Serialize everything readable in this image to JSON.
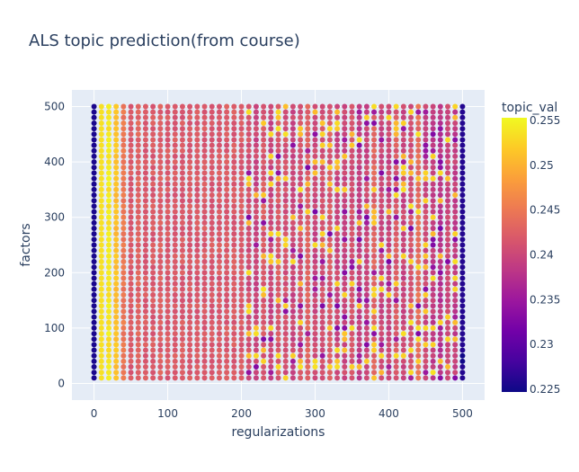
{
  "chart_data": {
    "type": "scatter",
    "title": "ALS topic prediction(from course)",
    "xlabel": "regularizations",
    "ylabel": "factors",
    "xlim": [
      -30,
      530
    ],
    "ylim": [
      -30,
      530
    ],
    "x_ticks": [
      0,
      100,
      200,
      300,
      400,
      500
    ],
    "y_ticks": [
      0,
      100,
      200,
      300,
      400,
      500
    ],
    "grid": true,
    "colorbar": {
      "title": "topic_val",
      "range": [
        0.2247,
        0.2553
      ],
      "ticks": [
        "0.225",
        "0.23",
        "0.235",
        "0.24",
        "0.245",
        "0.25",
        "0.255"
      ],
      "colorscale": [
        "#0d0887",
        "#46039f",
        "#7201a8",
        "#9c179e",
        "#bd3786",
        "#d8576b",
        "#ed7953",
        "#fb9f3a",
        "#fdca26",
        "#f0f921"
      ]
    },
    "colors": {
      "plot_bg": "#e5ecf6",
      "grid": "#ffffff",
      "text": "#2a3f5f"
    },
    "grid_points": {
      "x_start": 0,
      "x_end": 500,
      "x_step": 10,
      "y_start": 10,
      "y_end": 500,
      "y_step": 10
    },
    "column_base_values": [
      0.2255,
      0.2535,
      0.254,
      0.251,
      0.245,
      0.242,
      0.243,
      0.242,
      0.242,
      0.2425,
      0.242,
      0.242,
      0.242,
      0.242,
      0.242,
      0.242,
      0.242,
      0.242,
      0.242,
      0.242,
      0.242,
      0.241,
      0.24,
      0.242,
      0.24,
      0.242,
      0.241,
      0.24,
      0.241,
      0.243,
      0.24,
      0.241,
      0.242,
      0.24,
      0.24,
      0.241,
      0.239,
      0.24,
      0.243,
      0.24,
      0.24,
      0.242,
      0.24,
      0.241,
      0.244,
      0.24,
      0.239,
      0.238,
      0.24,
      0.239,
      0.226
    ]
  }
}
